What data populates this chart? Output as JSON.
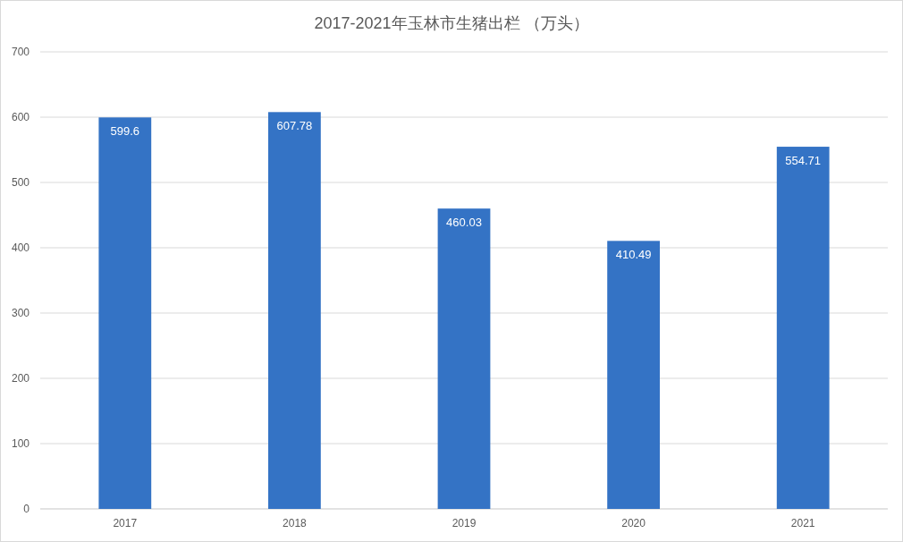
{
  "chart_data": {
    "type": "bar",
    "title": "2017-2021年玉林市生猪出栏 （万头）",
    "categories": [
      "2017",
      "2018",
      "2019",
      "2020",
      "2021"
    ],
    "values": [
      599.6,
      607.78,
      460.03,
      410.49,
      554.71
    ],
    "color": "#3473c5",
    "ylim": [
      0,
      700
    ],
    "yticks": [
      0,
      100,
      200,
      300,
      400,
      500,
      600,
      700
    ],
    "grid": "y",
    "data_labels": true
  }
}
